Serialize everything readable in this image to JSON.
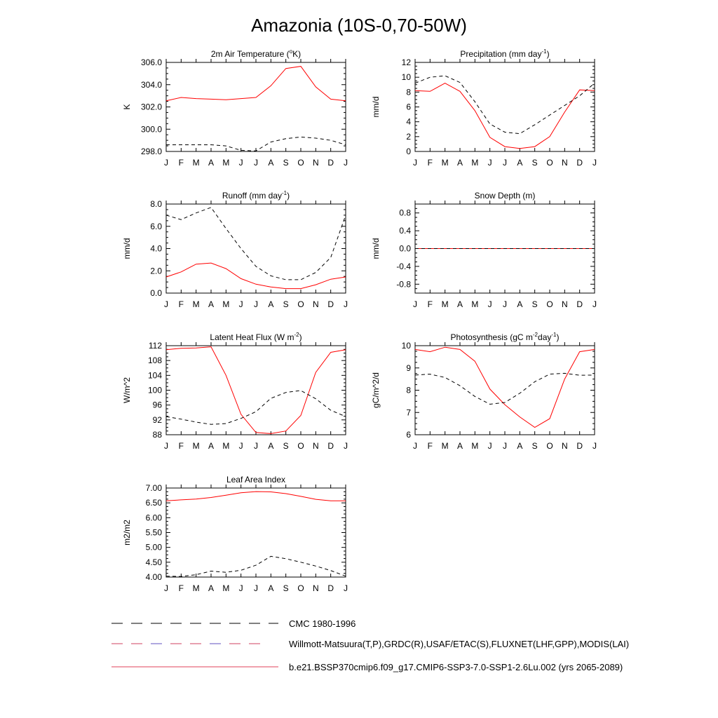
{
  "title": "Amazonia (10S-0,70-50W)",
  "months": [
    "J",
    "F",
    "M",
    "A",
    "M",
    "J",
    "J",
    "A",
    "S",
    "O",
    "N",
    "D",
    "J"
  ],
  "colors": {
    "model": "#ff0000",
    "obs": "#000000"
  },
  "chart_data": [
    {
      "type": "line",
      "title": "2m Air Temperature (",
      "title_sup": "o",
      "title_tail": "K)",
      "ylabel": "K",
      "ylim": [
        298.0,
        306.0
      ],
      "yticks": [
        298.0,
        300.0,
        302.0,
        304.0,
        306.0
      ],
      "ytick_labels": [
        "298.0",
        "300.0",
        "302.0",
        "304.0",
        "306.0"
      ],
      "series": [
        {
          "style": "model",
          "values": [
            302.55,
            302.85,
            302.75,
            302.7,
            302.65,
            302.75,
            302.85,
            303.9,
            305.45,
            305.65,
            303.8,
            302.7,
            302.55
          ]
        },
        {
          "style": "obs",
          "values": [
            298.6,
            298.6,
            298.6,
            298.6,
            298.5,
            298.1,
            298.05,
            298.85,
            299.15,
            299.3,
            299.2,
            299.0,
            298.6
          ]
        }
      ]
    },
    {
      "type": "line",
      "title": "Precipitation (mm day",
      "title_sup": "-1",
      "title_tail": ")",
      "ylabel": "mm/d",
      "ylim": [
        0,
        12
      ],
      "yticks": [
        0,
        2,
        4,
        6,
        8,
        10,
        12
      ],
      "ytick_labels": [
        "0",
        "2",
        "4",
        "6",
        "8",
        "10",
        "12"
      ],
      "series": [
        {
          "style": "model",
          "values": [
            8.2,
            8.1,
            9.2,
            8.1,
            5.5,
            1.9,
            0.65,
            0.4,
            0.65,
            2.0,
            5.3,
            8.3,
            8.2
          ]
        },
        {
          "style": "obs",
          "values": [
            9.2,
            10.0,
            10.2,
            9.3,
            6.7,
            3.7,
            2.6,
            2.4,
            3.6,
            4.9,
            6.2,
            7.5,
            9.2
          ]
        }
      ]
    },
    {
      "type": "line",
      "title": "Runoff (mm day",
      "title_sup": "-1",
      "title_tail": ")",
      "ylabel": "mm/d",
      "ylim": [
        0.0,
        8.0
      ],
      "yticks": [
        0.0,
        2.0,
        4.0,
        6.0,
        8.0
      ],
      "ytick_labels": [
        "0.0",
        "2.0",
        "4.0",
        "6.0",
        "8.0"
      ],
      "series": [
        {
          "style": "model",
          "values": [
            1.45,
            1.9,
            2.6,
            2.7,
            2.2,
            1.3,
            0.8,
            0.55,
            0.4,
            0.4,
            0.75,
            1.25,
            1.45
          ]
        },
        {
          "style": "obs",
          "values": [
            7.0,
            6.6,
            7.2,
            7.7,
            5.8,
            4.0,
            2.4,
            1.55,
            1.2,
            1.2,
            1.85,
            3.2,
            7.0
          ]
        }
      ]
    },
    {
      "type": "line",
      "title": "Snow Depth (m)",
      "title_sup": "",
      "title_tail": "",
      "ylabel": "mm/d",
      "ylim": [
        -1.0,
        1.0
      ],
      "yticks": [
        -0.8,
        -0.4,
        0.0,
        0.4,
        0.8
      ],
      "ytick_labels": [
        "-0.8",
        "-0.4",
        "0.0",
        "0.4",
        "0.8"
      ],
      "series": [
        {
          "style": "model",
          "values": [
            0,
            0,
            0,
            0,
            0,
            0,
            0,
            0,
            0,
            0,
            0,
            0,
            0
          ]
        },
        {
          "style": "obs",
          "values": [
            0,
            0,
            0,
            0,
            0,
            0,
            0,
            0,
            0,
            0,
            0,
            0,
            0
          ]
        }
      ]
    },
    {
      "type": "line",
      "title": "Latent Heat Flux (W m",
      "title_sup": "-2",
      "title_tail": ")",
      "ylabel": "W/m^2",
      "ylim": [
        88,
        112
      ],
      "yticks": [
        88,
        92,
        96,
        100,
        104,
        108,
        112
      ],
      "ytick_labels": [
        "88",
        "92",
        "96",
        "100",
        "104",
        "108",
        "112"
      ],
      "series": [
        {
          "style": "model",
          "values": [
            110.9,
            111.3,
            111.4,
            111.7,
            104.0,
            93.5,
            88.6,
            88.3,
            89.0,
            93.2,
            104.8,
            110.2,
            110.9
          ]
        },
        {
          "style": "obs",
          "values": [
            92.9,
            92.2,
            91.4,
            90.8,
            91.0,
            92.4,
            94.2,
            97.8,
            99.4,
            99.9,
            97.7,
            94.6,
            92.9
          ]
        }
      ]
    },
    {
      "type": "line",
      "title": "Photosynthesis (gC m",
      "title_sup": "-2",
      "title_tail": "day",
      "title_sup2": "-1",
      "title_tail2": ")",
      "ylabel": "gC/m^2/d",
      "ylim": [
        6,
        10
      ],
      "yticks": [
        6,
        7,
        8,
        9,
        10
      ],
      "ytick_labels": [
        "6",
        "7",
        "8",
        "9",
        "10"
      ],
      "series": [
        {
          "style": "model",
          "values": [
            9.83,
            9.73,
            9.93,
            9.83,
            9.3,
            8.05,
            7.35,
            6.8,
            6.33,
            6.72,
            8.5,
            9.73,
            9.83
          ]
        },
        {
          "style": "obs",
          "values": [
            8.68,
            8.72,
            8.57,
            8.2,
            7.72,
            7.37,
            7.45,
            7.86,
            8.38,
            8.72,
            8.76,
            8.67,
            8.68
          ]
        }
      ]
    },
    {
      "type": "line",
      "title": "Leaf Area Index",
      "title_sup": "",
      "title_tail": "",
      "ylabel": "m2/m2",
      "ylim": [
        4.0,
        7.0
      ],
      "yticks": [
        4.0,
        4.5,
        5.0,
        5.5,
        6.0,
        6.5,
        7.0
      ],
      "ytick_labels": [
        "4.00",
        "4.50",
        "5.00",
        "5.50",
        "6.00",
        "6.50",
        "7.00"
      ],
      "series": [
        {
          "style": "model",
          "values": [
            6.57,
            6.6,
            6.63,
            6.68,
            6.76,
            6.84,
            6.88,
            6.87,
            6.81,
            6.72,
            6.62,
            6.57,
            6.57
          ]
        },
        {
          "style": "obs",
          "values": [
            4.03,
            4.02,
            4.08,
            4.2,
            4.16,
            4.23,
            4.4,
            4.7,
            4.62,
            4.5,
            4.37,
            4.22,
            4.03
          ]
        }
      ]
    }
  ],
  "legend": [
    {
      "label": "CMC 1980-1996",
      "style": "dash-black"
    },
    {
      "label": "Willmott-Matsuura(T,P),GRDC(R),USAF/ETAC(S),FLUXNET(LHF,GPP),MODIS(LAI)",
      "style": "dash-multi"
    },
    {
      "label": "b.e21.BSSP370cmip6.f09_g17.CMIP6-SSP3-7.0-SSP1-2.6Lu.002 (yrs 2065-2089)",
      "style": "solid-red"
    }
  ]
}
